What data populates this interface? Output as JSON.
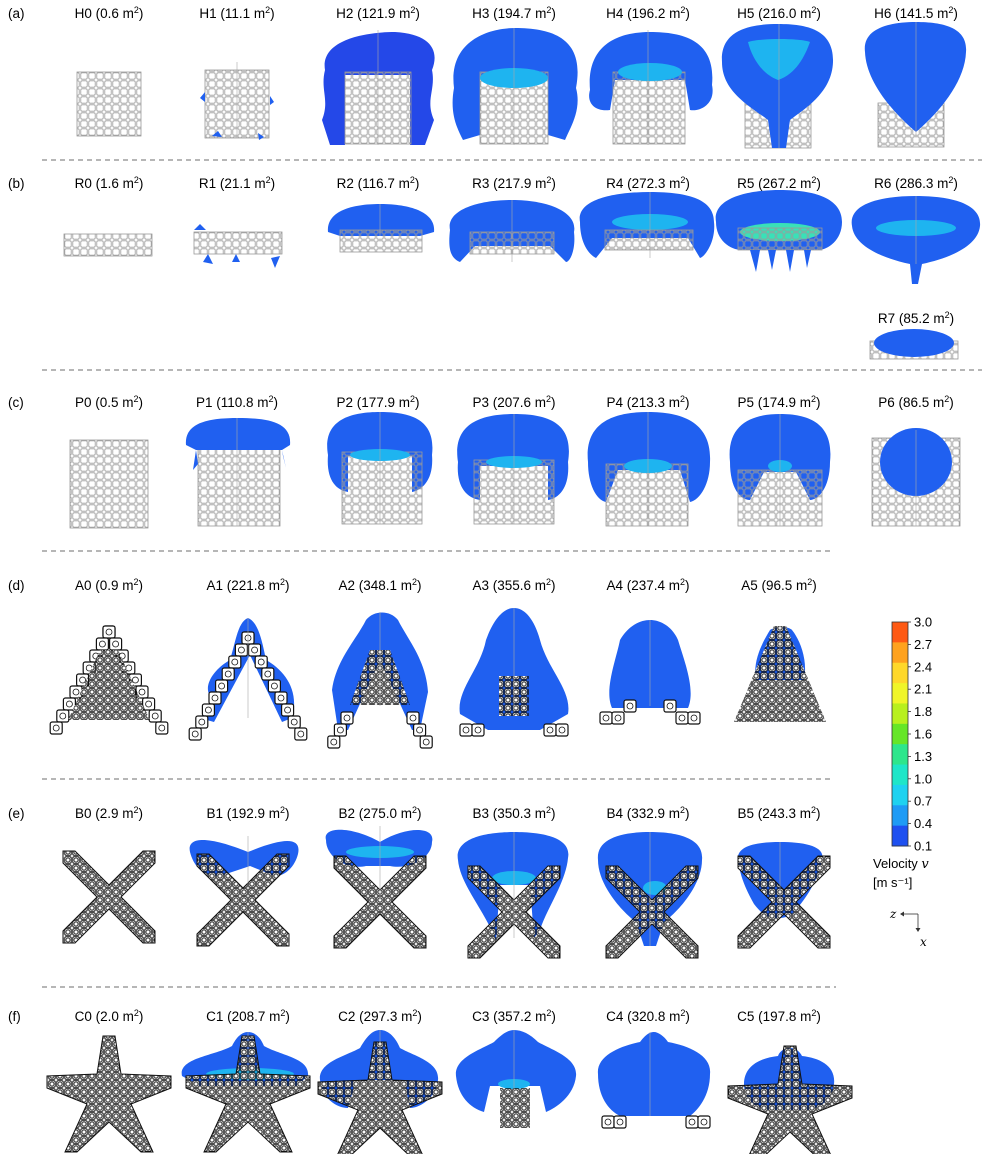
{
  "rows": [
    {
      "letter": "(a)",
      "panels": [
        {
          "id": "H0",
          "area": "0.6"
        },
        {
          "id": "H1",
          "area": "11.1"
        },
        {
          "id": "H2",
          "area": "121.9"
        },
        {
          "id": "H3",
          "area": "194.7"
        },
        {
          "id": "H4",
          "area": "196.2"
        },
        {
          "id": "H5",
          "area": "216.0"
        },
        {
          "id": "H6",
          "area": "141.5"
        }
      ]
    },
    {
      "letter": "(b)",
      "panels": [
        {
          "id": "R0",
          "area": "1.6"
        },
        {
          "id": "R1",
          "area": "21.1"
        },
        {
          "id": "R2",
          "area": "116.7"
        },
        {
          "id": "R3",
          "area": "217.9"
        },
        {
          "id": "R4",
          "area": "272.3"
        },
        {
          "id": "R5",
          "area": "267.2"
        },
        {
          "id": "R6",
          "area": "286.3"
        },
        {
          "id": "R7",
          "area": "85.2"
        }
      ]
    },
    {
      "letter": "(c)",
      "panels": [
        {
          "id": "P0",
          "area": "0.5"
        },
        {
          "id": "P1",
          "area": "110.8"
        },
        {
          "id": "P2",
          "area": "177.9"
        },
        {
          "id": "P3",
          "area": "207.6"
        },
        {
          "id": "P4",
          "area": "213.3"
        },
        {
          "id": "P5",
          "area": "174.9"
        },
        {
          "id": "P6",
          "area": "86.5"
        }
      ]
    },
    {
      "letter": "(d)",
      "panels": [
        {
          "id": "A0",
          "area": "0.9"
        },
        {
          "id": "A1",
          "area": "221.8"
        },
        {
          "id": "A2",
          "area": "348.1"
        },
        {
          "id": "A3",
          "area": "355.6"
        },
        {
          "id": "A4",
          "area": "237.4"
        },
        {
          "id": "A5",
          "area": "96.5"
        }
      ]
    },
    {
      "letter": "(e)",
      "panels": [
        {
          "id": "B0",
          "area": "2.9"
        },
        {
          "id": "B1",
          "area": "192.9"
        },
        {
          "id": "B2",
          "area": "275.0"
        },
        {
          "id": "B3",
          "area": "350.3"
        },
        {
          "id": "B4",
          "area": "332.9"
        },
        {
          "id": "B5",
          "area": "243.3"
        }
      ]
    },
    {
      "letter": "(f)",
      "panels": [
        {
          "id": "C0",
          "area": "2.0"
        },
        {
          "id": "C1",
          "area": "208.7"
        },
        {
          "id": "C2",
          "area": "297.3"
        },
        {
          "id": "C3",
          "area": "357.2"
        },
        {
          "id": "C4",
          "area": "320.8"
        },
        {
          "id": "C5",
          "area": "197.8"
        }
      ]
    }
  ],
  "unit_base": "m",
  "unit_exp": "2",
  "colorbar": {
    "ticks": [
      "3.0",
      "2.7",
      "2.4",
      "2.1",
      "1.8",
      "1.6",
      "1.3",
      "1.0",
      "0.7",
      "0.4",
      "0.1"
    ],
    "colors": [
      "#ff5a14",
      "#ffa21e",
      "#ffd82a",
      "#f0f528",
      "#b8f01e",
      "#66e628",
      "#2ee68c",
      "#1ee6c8",
      "#1ed2f0",
      "#1e9bf5",
      "#1e50f0"
    ],
    "title": "Velocity",
    "symbol": "v",
    "unit": "[m s⁻¹]"
  },
  "axes": {
    "z": "z",
    "x": "x"
  },
  "colors": {
    "plume": "#2060f0",
    "core": "#1eb4f0",
    "grid": "#9a9a9a",
    "dark": "#111111"
  }
}
